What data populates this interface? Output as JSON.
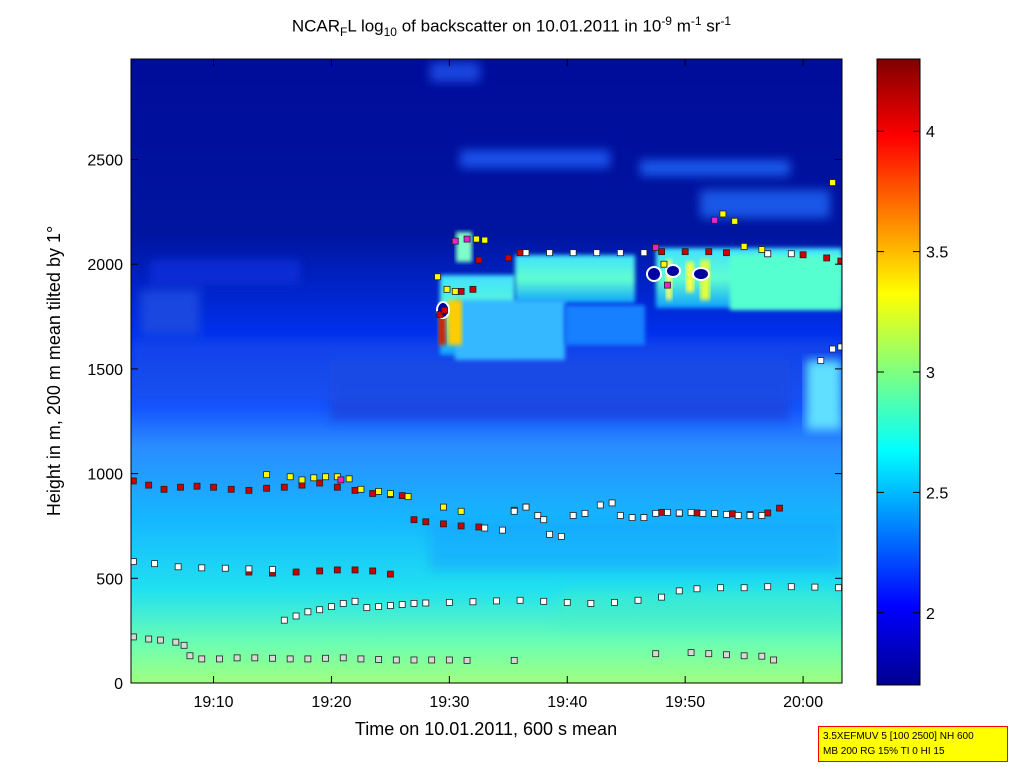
{
  "chart_data": {
    "type": "heatmap",
    "title": {
      "prefix": "NCAR",
      "prefix_sub": "F",
      "middle": "L log",
      "log_base": "10",
      "rest": " of backscatter on 10.01.2011 in 10",
      "exp1": "-9",
      "unit1": " m",
      "exp2": "-1",
      "unit2": " sr",
      "exp3": "-1"
    },
    "xlabel": "Time on 10.01.2011, 600 s mean",
    "ylabel": "Height in m, 200 m mean tilted by 1°",
    "x_ticks": [
      "19:10",
      "19:20",
      "19:30",
      "19:40",
      "19:50",
      "20:00"
    ],
    "x_tick_minutes": [
      10,
      20,
      30,
      40,
      50,
      60
    ],
    "xlim_minutes": [
      3,
      63.3
    ],
    "y_ticks": [
      "0",
      "500",
      "1000",
      "1500",
      "2000",
      "2500"
    ],
    "y_tick_values": [
      0,
      500,
      1000,
      1500,
      2000,
      2500
    ],
    "ylim": [
      0,
      2980
    ],
    "colorbar": {
      "ticks": [
        "2",
        "2.5",
        "3",
        "3.5",
        "4"
      ],
      "tick_values": [
        2,
        2.5,
        3,
        3.5,
        4
      ],
      "range": [
        1.7,
        4.3
      ]
    },
    "series": [
      {
        "color": "#cc0000",
        "label": "red layer markers",
        "points": [
          [
            3.2,
            965
          ],
          [
            4.5,
            945
          ],
          [
            5.8,
            925
          ],
          [
            7.2,
            935
          ],
          [
            8.6,
            940
          ],
          [
            10,
            935
          ],
          [
            11.5,
            925
          ],
          [
            13,
            920
          ],
          [
            14.5,
            930
          ],
          [
            16,
            935
          ],
          [
            17.5,
            945
          ],
          [
            19,
            955
          ],
          [
            20.5,
            935
          ],
          [
            22,
            920
          ],
          [
            23.5,
            905
          ],
          [
            25,
            900
          ],
          [
            26,
            895
          ],
          [
            27,
            780
          ],
          [
            28,
            770
          ],
          [
            29.5,
            760
          ],
          [
            31,
            750
          ],
          [
            32.5,
            745
          ],
          [
            35.5,
            825
          ],
          [
            36.5,
            840
          ],
          [
            48,
            815
          ],
          [
            49.5,
            810
          ],
          [
            51,
            812
          ],
          [
            52.5,
            810
          ],
          [
            54,
            808
          ],
          [
            55.5,
            805
          ],
          [
            57,
            812
          ],
          [
            58,
            835
          ],
          [
            13,
            530
          ],
          [
            15,
            525
          ],
          [
            17,
            530
          ],
          [
            19,
            535
          ],
          [
            20.5,
            540
          ],
          [
            22,
            540
          ],
          [
            23.5,
            535
          ],
          [
            25,
            520
          ],
          [
            32.5,
            2020
          ],
          [
            35,
            2030
          ],
          [
            36,
            2055
          ],
          [
            48,
            2060
          ],
          [
            50,
            2060
          ],
          [
            52,
            2060
          ],
          [
            53.5,
            2055
          ],
          [
            57,
            2050
          ],
          [
            60,
            2045
          ],
          [
            62,
            2030
          ],
          [
            63.2,
            2015
          ],
          [
            29.2,
            1760
          ],
          [
            29.6,
            1780
          ],
          [
            31,
            1870
          ],
          [
            32,
            1880
          ]
        ]
      },
      {
        "color": "#ffff00",
        "label": "yellow layer markers",
        "points": [
          [
            14.5,
            995
          ],
          [
            16.5,
            985
          ],
          [
            17.5,
            970
          ],
          [
            18.5,
            980
          ],
          [
            19.5,
            985
          ],
          [
            20.5,
            985
          ],
          [
            21.5,
            975
          ],
          [
            22.5,
            925
          ],
          [
            24,
            915
          ],
          [
            25,
            905
          ],
          [
            26.5,
            890
          ],
          [
            29.5,
            840
          ],
          [
            31,
            820
          ],
          [
            29,
            1940
          ],
          [
            29.8,
            1880
          ],
          [
            30.5,
            1870
          ],
          [
            32.3,
            2120
          ],
          [
            33,
            2115
          ],
          [
            48.2,
            2000
          ],
          [
            53.2,
            2240
          ],
          [
            54.2,
            2205
          ],
          [
            55,
            2085
          ],
          [
            56.5,
            2070
          ],
          [
            62.5,
            2390
          ]
        ]
      },
      {
        "color": "#ffffff",
        "label": "white layer markers",
        "points": [
          [
            3.2,
            580
          ],
          [
            5,
            570
          ],
          [
            7,
            555
          ],
          [
            9,
            550
          ],
          [
            11,
            548
          ],
          [
            13,
            545
          ],
          [
            15,
            542
          ],
          [
            16,
            300
          ],
          [
            17,
            320
          ],
          [
            18,
            340
          ],
          [
            19,
            350
          ],
          [
            20,
            365
          ],
          [
            21,
            380
          ],
          [
            22,
            390
          ],
          [
            23,
            360
          ],
          [
            24,
            365
          ],
          [
            25,
            370
          ],
          [
            26,
            375
          ],
          [
            27,
            380
          ],
          [
            28,
            382
          ],
          [
            30,
            385
          ],
          [
            32,
            388
          ],
          [
            34,
            392
          ],
          [
            36,
            395
          ],
          [
            38,
            390
          ],
          [
            40,
            385
          ],
          [
            42,
            380
          ],
          [
            44,
            385
          ],
          [
            46,
            395
          ],
          [
            48,
            410
          ],
          [
            49.5,
            440
          ],
          [
            51,
            450
          ],
          [
            53,
            455
          ],
          [
            55,
            455
          ],
          [
            57,
            460
          ],
          [
            59,
            460
          ],
          [
            61,
            458
          ],
          [
            63,
            455
          ],
          [
            33,
            740
          ],
          [
            34.5,
            730
          ],
          [
            35.5,
            820
          ],
          [
            36.5,
            840
          ],
          [
            37.5,
            800
          ],
          [
            38,
            780
          ],
          [
            38.5,
            710
          ],
          [
            39.5,
            700
          ],
          [
            40.5,
            800
          ],
          [
            41.5,
            810
          ],
          [
            42.8,
            850
          ],
          [
            43.8,
            860
          ],
          [
            44.5,
            800
          ],
          [
            45.5,
            790
          ],
          [
            46.5,
            790
          ],
          [
            47.5,
            810
          ],
          [
            48.5,
            815
          ],
          [
            49.5,
            812
          ],
          [
            50.5,
            815
          ],
          [
            51.5,
            810
          ],
          [
            52.5,
            810
          ],
          [
            53.5,
            805
          ],
          [
            54.5,
            800
          ],
          [
            55.5,
            800
          ],
          [
            56.5,
            800
          ],
          [
            36.5,
            2055
          ],
          [
            38.5,
            2055
          ],
          [
            40.5,
            2055
          ],
          [
            42.5,
            2055
          ],
          [
            44.5,
            2055
          ],
          [
            46.5,
            2055
          ],
          [
            57,
            2050
          ],
          [
            59,
            2050
          ],
          [
            61.5,
            1540
          ],
          [
            62.5,
            1595
          ],
          [
            63.2,
            1605
          ]
        ]
      },
      {
        "color": "#d6d9d6",
        "label": "grey layer markers",
        "points": [
          [
            3.2,
            220
          ],
          [
            4.5,
            210
          ],
          [
            5.5,
            205
          ],
          [
            6.8,
            195
          ],
          [
            7.5,
            180
          ],
          [
            8,
            130
          ],
          [
            9,
            115
          ],
          [
            10.5,
            115
          ],
          [
            12,
            120
          ],
          [
            13.5,
            120
          ],
          [
            15,
            118
          ],
          [
            16.5,
            115
          ],
          [
            18,
            115
          ],
          [
            19.5,
            118
          ],
          [
            21,
            120
          ],
          [
            22.5,
            115
          ],
          [
            24,
            112
          ],
          [
            25.5,
            110
          ],
          [
            27,
            110
          ],
          [
            28.5,
            110
          ],
          [
            30,
            110
          ],
          [
            31.5,
            108
          ],
          [
            35.5,
            108
          ],
          [
            47.5,
            140
          ],
          [
            50.5,
            145
          ],
          [
            52,
            140
          ],
          [
            53.5,
            135
          ],
          [
            55,
            130
          ],
          [
            56.5,
            128
          ],
          [
            57.5,
            110
          ]
        ]
      },
      {
        "color": "#ee22cc",
        "label": "magenta layer markers",
        "points": [
          [
            30.5,
            2110
          ],
          [
            31.5,
            2120
          ],
          [
            47.5,
            2080
          ],
          [
            52.5,
            2210
          ],
          [
            48.5,
            1900
          ],
          [
            20.8,
            970
          ]
        ]
      }
    ]
  },
  "info_box": {
    "line1": "3.5XEFMUV 5 [100 2500] NH 600",
    "line2": "MB 200 RG 15% TI 0 HI 15"
  }
}
